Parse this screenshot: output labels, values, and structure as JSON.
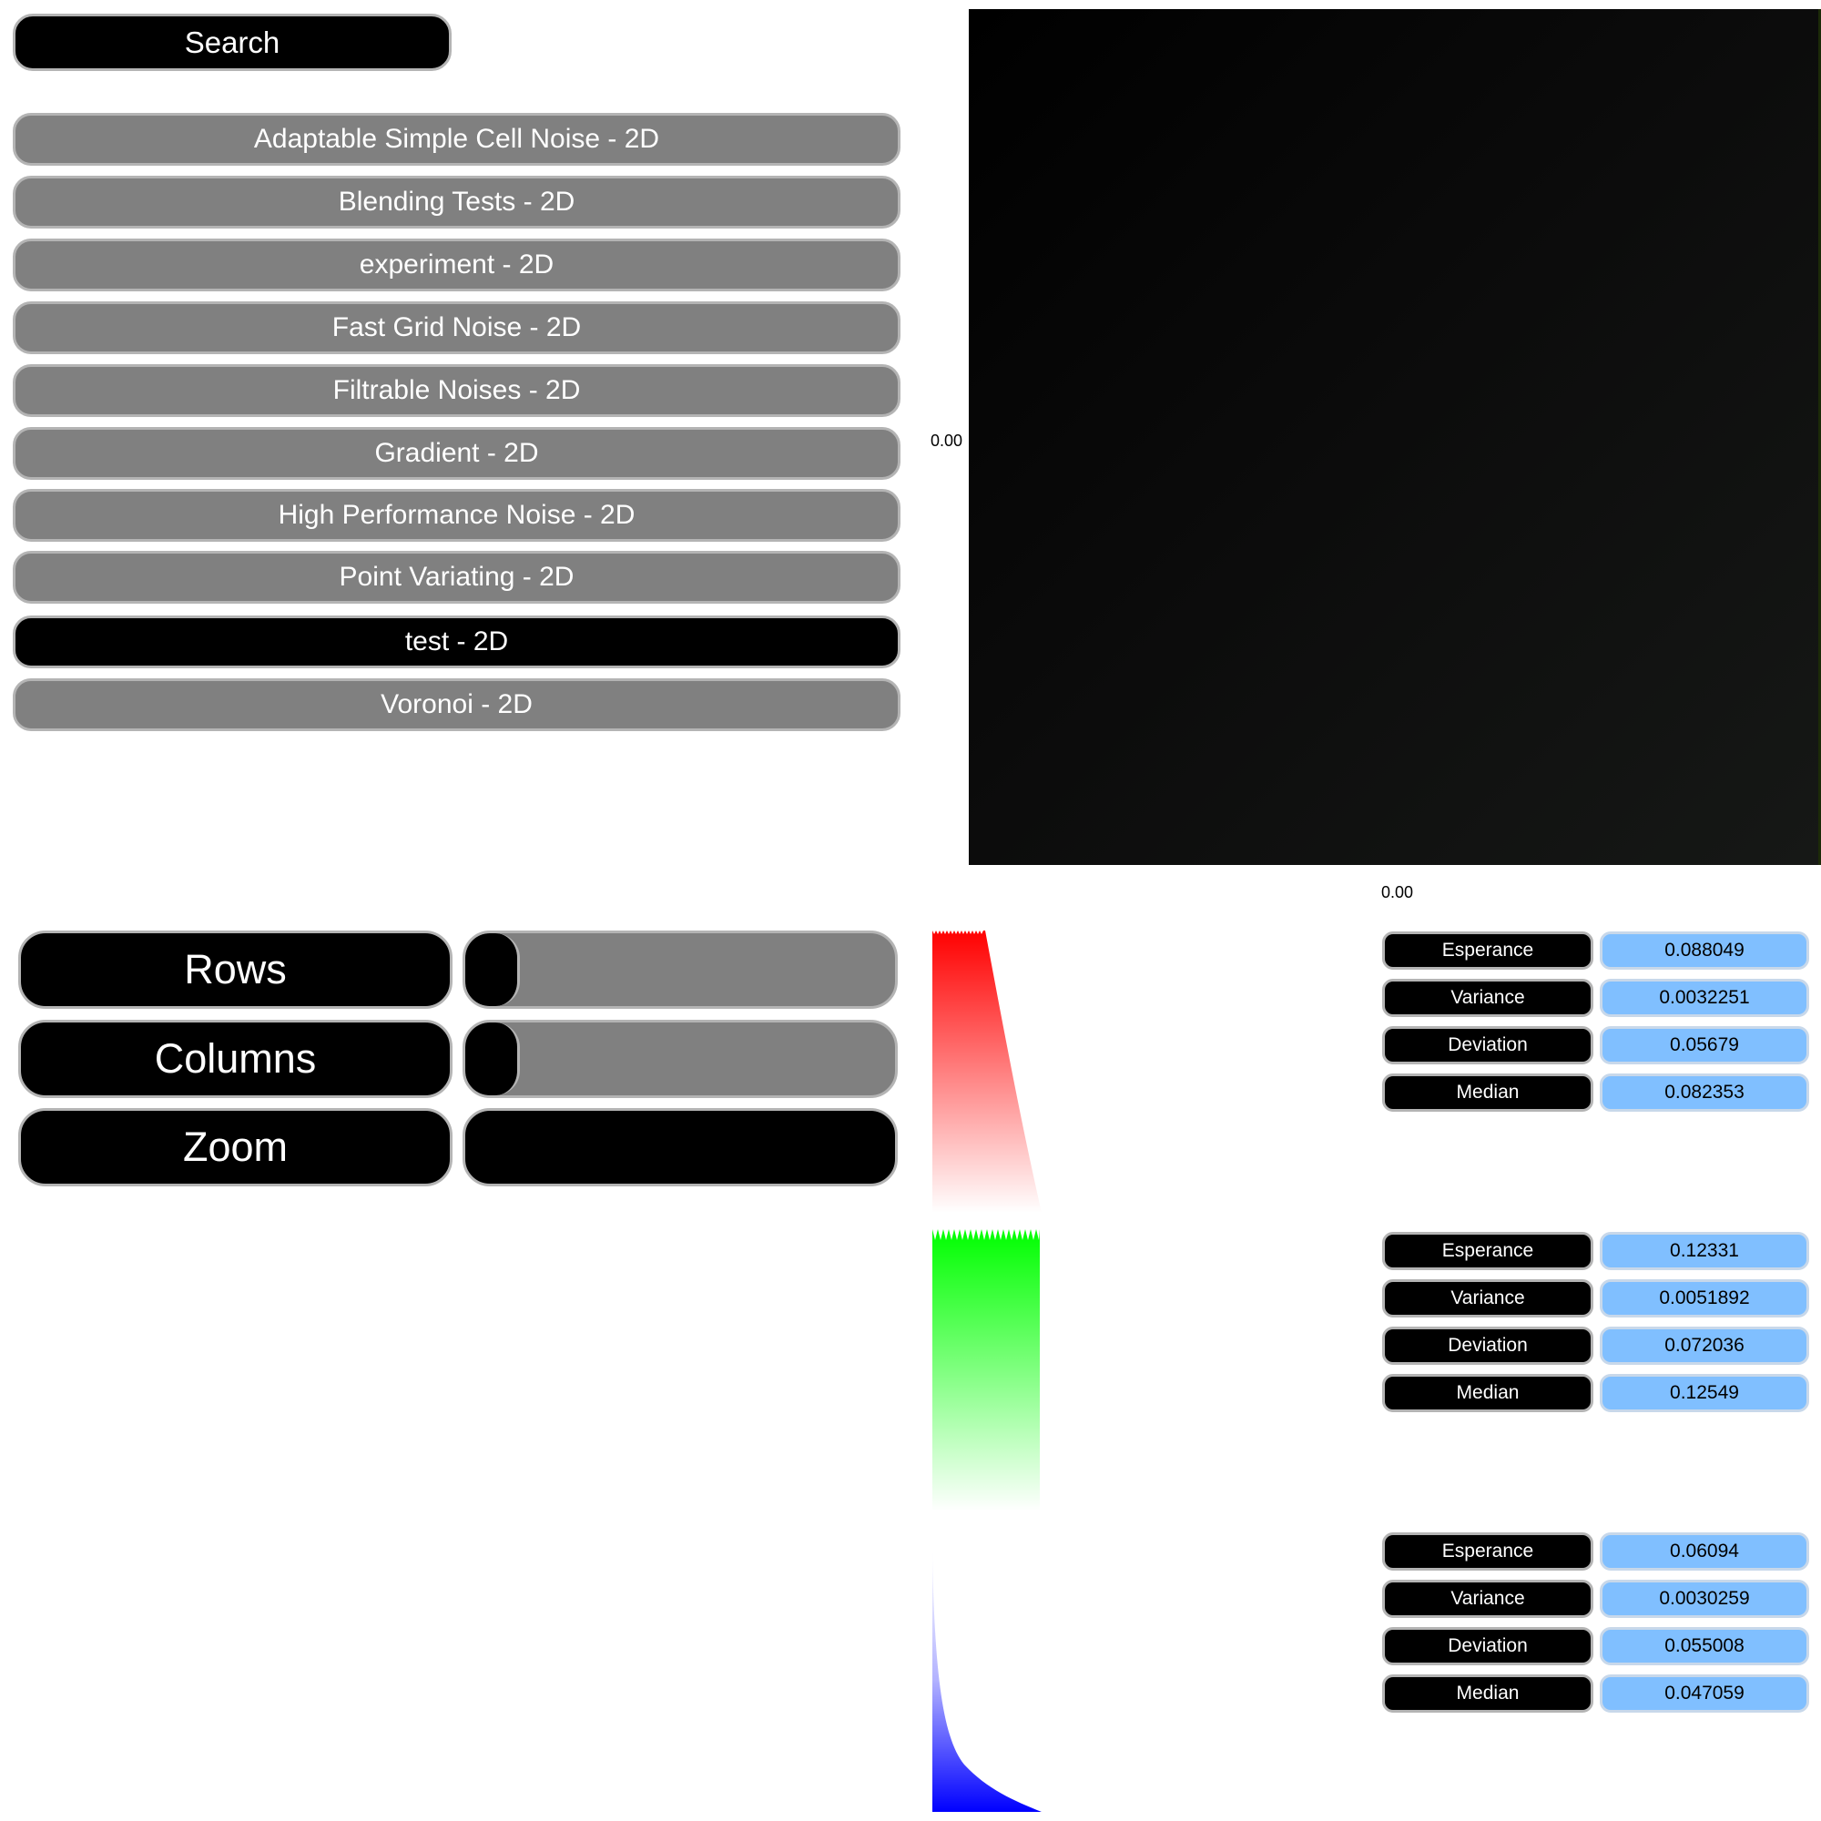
{
  "search": {
    "label": "Search"
  },
  "noise_list": [
    {
      "label": "Adaptable Simple Cell Noise - 2D",
      "selected": false
    },
    {
      "label": "Blending Tests - 2D",
      "selected": false
    },
    {
      "label": "experiment - 2D",
      "selected": false
    },
    {
      "label": "Fast Grid Noise - 2D",
      "selected": false
    },
    {
      "label": "Filtrable Noises - 2D",
      "selected": false
    },
    {
      "label": "Gradient - 2D",
      "selected": false
    },
    {
      "label": "High Performance Noise - 2D",
      "selected": false
    },
    {
      "label": "Point Variating - 2D",
      "selected": false
    },
    {
      "label": "test - 2D",
      "selected": true
    },
    {
      "label": "Voronoi - 2D",
      "selected": false
    }
  ],
  "preview": {
    "y_axis_label": "0.00",
    "x_axis_label": "0.00"
  },
  "controls": {
    "rows": {
      "label": "Rows",
      "fill_fraction": 0.12
    },
    "columns": {
      "label": "Columns",
      "fill_fraction": 0.12
    },
    "zoom": {
      "label": "Zoom",
      "fill_fraction": 1.0
    }
  },
  "channels": [
    {
      "color": "#ff0000",
      "stats": [
        {
          "label": "Esperance",
          "value": "0.088049"
        },
        {
          "label": "Variance",
          "value": "0.0032251"
        },
        {
          "label": "Deviation",
          "value": "0.05679"
        },
        {
          "label": "Median",
          "value": "0.082353"
        }
      ]
    },
    {
      "color": "#00ff00",
      "stats": [
        {
          "label": "Esperance",
          "value": "0.12331"
        },
        {
          "label": "Variance",
          "value": "0.0051892"
        },
        {
          "label": "Deviation",
          "value": "0.072036"
        },
        {
          "label": "Median",
          "value": "0.12549"
        }
      ]
    },
    {
      "color": "#0000ff",
      "stats": [
        {
          "label": "Esperance",
          "value": "0.06094"
        },
        {
          "label": "Variance",
          "value": "0.0030259"
        },
        {
          "label": "Deviation",
          "value": "0.055008"
        },
        {
          "label": "Median",
          "value": "0.047059"
        }
      ]
    }
  ]
}
